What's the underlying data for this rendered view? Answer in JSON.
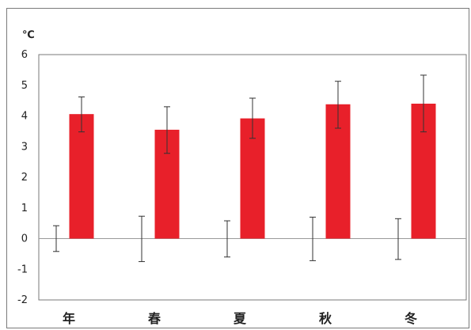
{
  "chart_data": {
    "type": "bar",
    "unit_label": "℃",
    "categories": [
      "年",
      "春",
      "夏",
      "秋",
      "冬"
    ],
    "ylim": [
      -2,
      6
    ],
    "yticks": [
      -2,
      -1,
      0,
      1,
      2,
      3,
      4,
      5,
      6
    ],
    "grid": false,
    "series": [
      {
        "values": [
          0,
          0,
          0,
          0,
          0
        ],
        "error_low": [
          -0.42,
          -0.75,
          -0.6,
          -0.72,
          -0.68
        ],
        "error_high": [
          0.42,
          0.73,
          0.58,
          0.7,
          0.65
        ],
        "color": "none",
        "error_color": "#333333"
      },
      {
        "values": [
          4.06,
          3.55,
          3.92,
          4.38,
          4.4
        ],
        "error_low": [
          3.48,
          2.78,
          3.27,
          3.6,
          3.48
        ],
        "error_high": [
          4.62,
          4.3,
          4.58,
          5.13,
          5.33
        ],
        "color": "#e8202a",
        "error_color": "#333333"
      }
    ]
  }
}
